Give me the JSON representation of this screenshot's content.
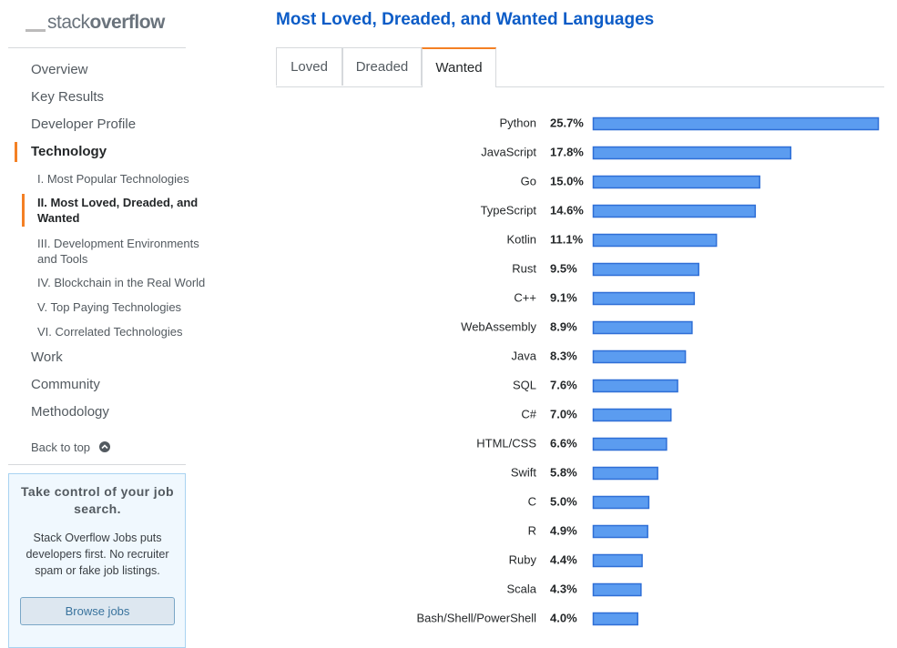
{
  "logo": [
    "stack",
    "overflow"
  ],
  "nav": [
    "Overview",
    "Key Results",
    "Developer Profile",
    "Technology"
  ],
  "subnav": [
    "I. Most Popular Technologies",
    "II. Most Loved, Dreaded, and Wanted",
    "III. Development Environments and Tools",
    "IV. Blockchain in the Real World",
    "V. Top Paying Technologies",
    "VI. Correlated Technologies"
  ],
  "nav_after": [
    "Work",
    "Community",
    "Methodology"
  ],
  "back_to_top": "Back to top",
  "promo": {
    "title": "Take control of your job search.",
    "body": "Stack Overflow Jobs puts developers first. No recruiter spam or fake job listings.",
    "button": "Browse jobs"
  },
  "tabs": [
    "Loved",
    "Dreaded",
    "Wanted"
  ],
  "chart_data": {
    "type": "hbar",
    "title": "Most Loved, Dreaded, and Wanted Languages",
    "categories": [
      "Python",
      "JavaScript",
      "Go",
      "TypeScript",
      "Kotlin",
      "Rust",
      "C++",
      "WebAssembly",
      "Java",
      "SQL",
      "C#",
      "HTML/CSS",
      "Swift",
      "C",
      "R",
      "Ruby",
      "Scala",
      "Bash/Shell/PowerShell"
    ],
    "values": [
      25.7,
      17.8,
      15.0,
      14.6,
      11.1,
      9.5,
      9.1,
      8.9,
      8.3,
      7.6,
      7.0,
      6.6,
      5.8,
      5.0,
      4.9,
      4.4,
      4.3,
      4.0
    ],
    "value_labels": [
      "25.7%",
      "17.8%",
      "15.0%",
      "14.6%",
      "11.1%",
      "9.5%",
      "9.1%",
      "8.9%",
      "8.3%",
      "7.6%",
      "7.0%",
      "6.6%",
      "5.8%",
      "5.0%",
      "4.9%",
      "4.4%",
      "4.3%",
      "4.0%"
    ],
    "color": "#5b9cf0"
  }
}
